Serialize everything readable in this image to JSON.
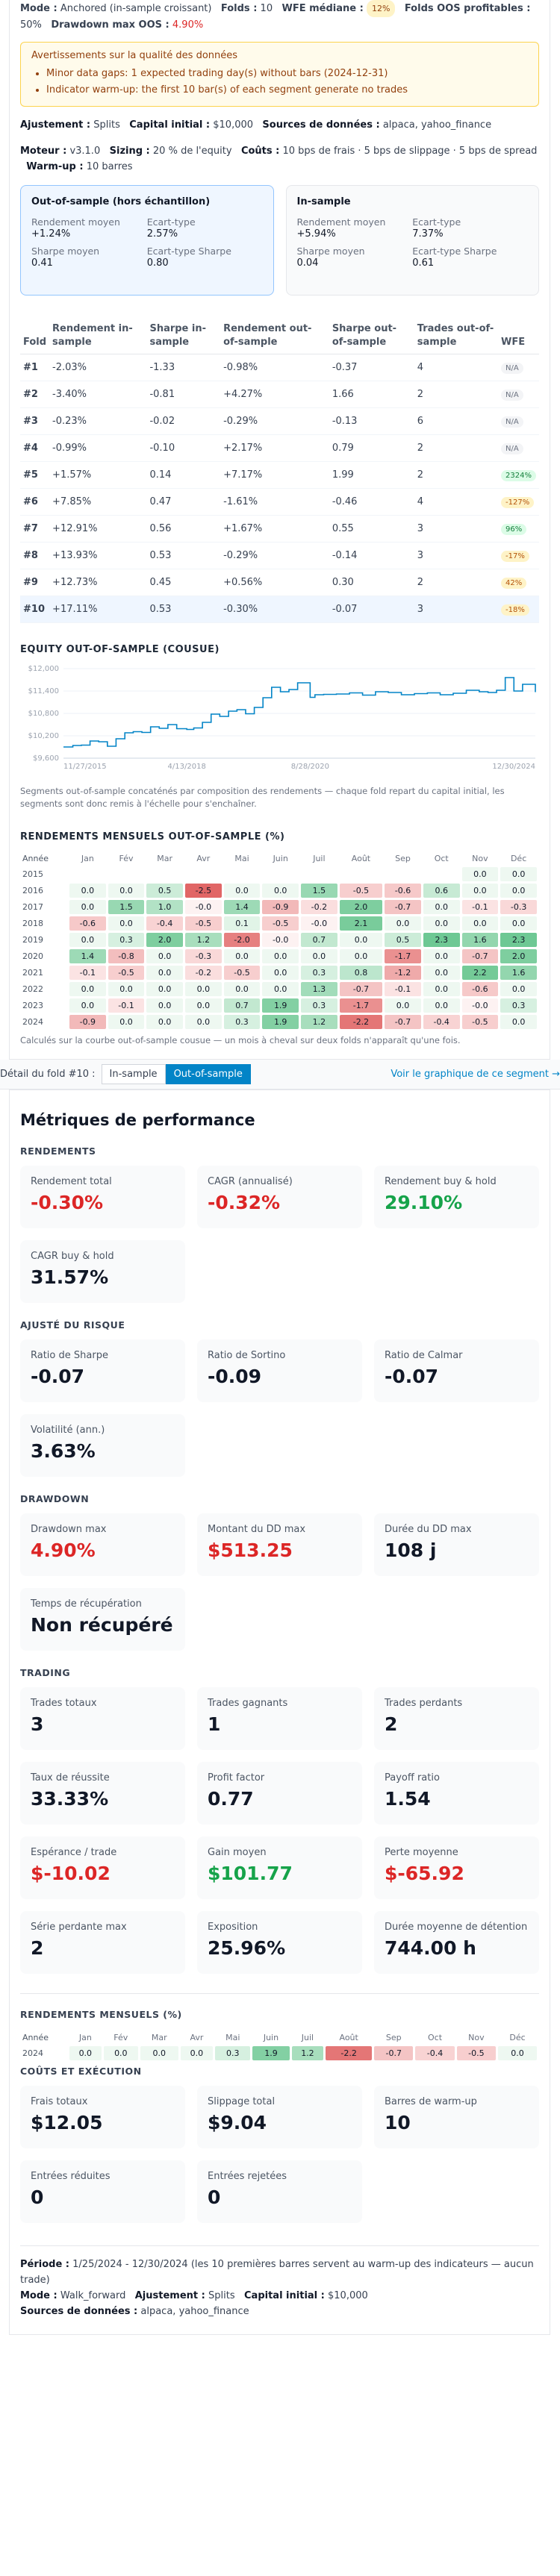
{
  "summary": {
    "mode_label": "Mode :",
    "mode_value": "Anchored (in-sample croissant)",
    "folds_label": "Folds :",
    "folds_value": "10",
    "wfe_label": "WFE médiane :",
    "wfe_value": "12%",
    "folds_oos_label": "Folds OOS profitables :",
    "folds_oos_value": "50%",
    "dd_label": "Drawdown max OOS :",
    "dd_value": "4.90%"
  },
  "warnings": {
    "title": "Avertissements sur la qualité des données",
    "items": [
      "Minor data gaps: 1 expected trading day(s) without bars (2024-12-31)",
      "Indicator warm-up: the first 10 bar(s) of each segment generate no trades"
    ]
  },
  "config": {
    "line1": [
      {
        "k": "Ajustement :",
        "v": "Splits"
      },
      {
        "k": "Capital initial :",
        "v": "$10,000"
      },
      {
        "k": "Sources de données :",
        "v": "alpaca, yahoo_finance"
      }
    ],
    "line2": [
      {
        "k": "Moteur :",
        "v": "v3.1.0"
      },
      {
        "k": "Sizing :",
        "v": "20 % de l'equity"
      },
      {
        "k": "Coûts :",
        "v": "10 bps de frais · 5 bps de slippage · 5 bps de spread"
      },
      {
        "k": "Warm-up :",
        "v": "10 barres"
      }
    ]
  },
  "oos_card": {
    "title": "Out-of-sample (hors échantillon)",
    "avg_label": "Rendement moyen",
    "avg_value": "+1.24%",
    "std_label": "Ecart-type",
    "std_value": "2.57%",
    "sharpe_label": "Sharpe moyen",
    "sharpe_value": "0.41",
    "sharpe_std_label": "Ecart-type Sharpe",
    "sharpe_std_value": "0.80"
  },
  "is_card": {
    "title": "In-sample",
    "avg_label": "Rendement moyen",
    "avg_value": "+5.94%",
    "std_label": "Ecart-type",
    "std_value": "7.37%",
    "sharpe_label": "Sharpe moyen",
    "sharpe_value": "0.04",
    "sharpe_std_label": "Ecart-type Sharpe",
    "sharpe_std_value": "0.61"
  },
  "folds_table": {
    "headers": [
      "Fold",
      "Rendement in-sample",
      "Sharpe in-sample",
      "Rendement out-of-sample",
      "Sharpe out-of-sample",
      "Trades out-of-sample",
      "WFE"
    ],
    "rows": [
      {
        "fold": "#1",
        "is_ret": "-2.03%",
        "is_sharpe": "-1.33",
        "oos_ret": "-0.98%",
        "oos_sharpe": "-0.37",
        "trades": "4",
        "wfe": "N/A",
        "wfe_kind": "na"
      },
      {
        "fold": "#2",
        "is_ret": "-3.40%",
        "is_sharpe": "-0.81",
        "oos_ret": "+4.27%",
        "oos_sharpe": "1.66",
        "trades": "2",
        "wfe": "N/A",
        "wfe_kind": "na"
      },
      {
        "fold": "#3",
        "is_ret": "-0.23%",
        "is_sharpe": "-0.02",
        "oos_ret": "-0.29%",
        "oos_sharpe": "-0.13",
        "trades": "6",
        "wfe": "N/A",
        "wfe_kind": "na"
      },
      {
        "fold": "#4",
        "is_ret": "-0.99%",
        "is_sharpe": "-0.10",
        "oos_ret": "+2.17%",
        "oos_sharpe": "0.79",
        "trades": "2",
        "wfe": "N/A",
        "wfe_kind": "na"
      },
      {
        "fold": "#5",
        "is_ret": "+1.57%",
        "is_sharpe": "0.14",
        "oos_ret": "+7.17%",
        "oos_sharpe": "1.99",
        "trades": "2",
        "wfe": "2324%",
        "wfe_kind": "good"
      },
      {
        "fold": "#6",
        "is_ret": "+7.85%",
        "is_sharpe": "0.47",
        "oos_ret": "-1.61%",
        "oos_sharpe": "-0.46",
        "trades": "4",
        "wfe": "-127%",
        "wfe_kind": "bad"
      },
      {
        "fold": "#7",
        "is_ret": "+12.91%",
        "is_sharpe": "0.56",
        "oos_ret": "+1.67%",
        "oos_sharpe": "0.55",
        "trades": "3",
        "wfe": "96%",
        "wfe_kind": "good"
      },
      {
        "fold": "#8",
        "is_ret": "+13.93%",
        "is_sharpe": "0.53",
        "oos_ret": "-0.29%",
        "oos_sharpe": "-0.14",
        "trades": "3",
        "wfe": "-17%",
        "wfe_kind": "bad"
      },
      {
        "fold": "#9",
        "is_ret": "+12.73%",
        "is_sharpe": "0.45",
        "oos_ret": "+0.56%",
        "oos_sharpe": "0.30",
        "trades": "2",
        "wfe": "42%",
        "wfe_kind": "bad"
      },
      {
        "fold": "#10",
        "is_ret": "+17.11%",
        "is_sharpe": "0.53",
        "oos_ret": "-0.30%",
        "oos_sharpe": "-0.07",
        "trades": "3",
        "wfe": "-18%",
        "wfe_kind": "bad"
      }
    ],
    "selected_index": 9
  },
  "equity": {
    "title": "EQUITY OUT-OF-SAMPLE (COUSUE)",
    "note": "Segments out-of-sample concaténés par composition des rendements — chaque fold repart du capital initial, les segments sont donc remis à l'échelle pour s'enchaîner."
  },
  "chart_data": {
    "type": "line",
    "title": "EQUITY OUT-OF-SAMPLE (COUSUE)",
    "xlabel": "",
    "ylabel": "",
    "y_ticks": [
      "$9,600",
      "$10,200",
      "$10,800",
      "$11,400",
      "$12,000"
    ],
    "x_ticks": [
      "11/27/2015",
      "4/13/2018",
      "8/28/2020",
      "12/30/2024"
    ],
    "ylim": [
      9600,
      12000
    ],
    "x": [
      "2015-11-27",
      "2016-02-01",
      "2016-04-01",
      "2016-06-01",
      "2016-08-01",
      "2016-10-01",
      "2016-12-01",
      "2017-02-01",
      "2017-04-01",
      "2017-06-01",
      "2017-08-01",
      "2017-10-01",
      "2017-12-01",
      "2018-02-01",
      "2018-04-13",
      "2018-06-01",
      "2018-08-01",
      "2018-10-01",
      "2018-12-01",
      "2019-02-01",
      "2019-04-01",
      "2019-06-01",
      "2019-08-01",
      "2019-10-01",
      "2019-12-01",
      "2020-02-01",
      "2020-04-01",
      "2020-06-01",
      "2020-08-28",
      "2020-10-01",
      "2020-12-01",
      "2021-03-01",
      "2021-06-01",
      "2021-09-01",
      "2021-12-01",
      "2022-03-01",
      "2022-06-01",
      "2022-09-01",
      "2022-12-01",
      "2023-03-01",
      "2023-06-01",
      "2023-09-01",
      "2023-12-01",
      "2024-02-01",
      "2024-04-01",
      "2024-06-01",
      "2024-08-01",
      "2024-10-01",
      "2024-12-30"
    ],
    "values": [
      9900,
      9940,
      9950,
      10060,
      10040,
      9920,
      10120,
      10280,
      10310,
      10290,
      10440,
      10400,
      10500,
      10390,
      10370,
      10410,
      10560,
      10780,
      10720,
      10860,
      10900,
      10790,
      10960,
      11220,
      11500,
      11380,
      11440,
      11620,
      11230,
      11300,
      11310,
      11320,
      11350,
      11290,
      11380,
      11360,
      11300,
      11330,
      11350,
      11300,
      11340,
      11420,
      11380,
      11360,
      11420,
      11760,
      11400,
      11580,
      11370
    ]
  },
  "monthly_oos": {
    "title": "RENDEMENTS MENSUELS OUT-OF-SAMPLE (%)",
    "months": [
      "Année",
      "Jan",
      "Fév",
      "Mar",
      "Avr",
      "Mai",
      "Juin",
      "Juil",
      "Août",
      "Sep",
      "Oct",
      "Nov",
      "Déc"
    ],
    "rows": [
      {
        "year": "2015",
        "cells": [
          "",
          "",
          "",
          "",
          "",
          "",
          "",
          "",
          "",
          "",
          "0.0",
          "0.0"
        ]
      },
      {
        "year": "2016",
        "cells": [
          "0.0",
          "0.0",
          "0.5",
          "-2.5",
          "0.0",
          "0.0",
          "1.5",
          "-0.5",
          "-0.6",
          "0.6",
          "0.0",
          "0.0"
        ]
      },
      {
        "year": "2017",
        "cells": [
          "0.0",
          "1.5",
          "1.0",
          "-0.0",
          "1.4",
          "-0.9",
          "-0.2",
          "2.0",
          "-0.7",
          "0.0",
          "-0.1",
          "-0.3"
        ]
      },
      {
        "year": "2018",
        "cells": [
          "-0.6",
          "0.0",
          "-0.4",
          "-0.5",
          "0.1",
          "-0.5",
          "-0.0",
          "2.1",
          "0.0",
          "0.0",
          "0.0",
          "0.0"
        ]
      },
      {
        "year": "2019",
        "cells": [
          "0.0",
          "0.3",
          "2.0",
          "1.2",
          "-2.0",
          "-0.0",
          "0.7",
          "0.0",
          "0.5",
          "2.3",
          "1.6",
          "2.3"
        ]
      },
      {
        "year": "2020",
        "cells": [
          "1.4",
          "-0.8",
          "0.0",
          "-0.3",
          "0.0",
          "0.0",
          "0.0",
          "0.0",
          "-1.7",
          "0.0",
          "-0.7",
          "2.0"
        ]
      },
      {
        "year": "2021",
        "cells": [
          "-0.1",
          "-0.5",
          "0.0",
          "-0.2",
          "-0.5",
          "0.0",
          "0.3",
          "0.8",
          "-1.2",
          "0.0",
          "2.2",
          "1.6"
        ]
      },
      {
        "year": "2022",
        "cells": [
          "0.0",
          "0.0",
          "0.0",
          "0.0",
          "0.0",
          "0.0",
          "1.3",
          "-0.7",
          "-0.1",
          "0.0",
          "-0.6",
          "0.0"
        ]
      },
      {
        "year": "2023",
        "cells": [
          "0.0",
          "-0.1",
          "0.0",
          "0.0",
          "0.7",
          "1.9",
          "0.3",
          "-1.7",
          "0.0",
          "0.0",
          "-0.0",
          "0.3"
        ]
      },
      {
        "year": "2024",
        "cells": [
          "-0.9",
          "0.0",
          "0.0",
          "0.0",
          "0.3",
          "1.9",
          "1.2",
          "-2.2",
          "-0.7",
          "-0.4",
          "-0.5",
          "0.0"
        ]
      }
    ],
    "note": "Calculés sur la courbe out-of-sample cousue — un mois à cheval sur deux folds n'apparaît qu'une fois."
  },
  "detail_bar": {
    "label": "Détail du fold #10 :",
    "tab_is": "In-sample",
    "tab_oos": "Out-of-sample",
    "link": "Voir le graphique de ce segment →"
  },
  "metrics": {
    "title": "Métriques de performance",
    "groups": [
      {
        "title": "RENDEMENTS",
        "cards": [
          {
            "label": "Rendement total",
            "value": "-0.30%",
            "tone": "red"
          },
          {
            "label": "CAGR (annualisé)",
            "value": "-0.32%",
            "tone": "red"
          },
          {
            "label": "Rendement buy & hold",
            "value": "29.10%",
            "tone": "green"
          },
          {
            "label": "CAGR buy & hold",
            "value": "31.57%",
            "tone": ""
          }
        ]
      },
      {
        "title": "AJUSTÉ DU RISQUE",
        "cards": [
          {
            "label": "Ratio de Sharpe",
            "value": "-0.07",
            "tone": ""
          },
          {
            "label": "Ratio de Sortino",
            "value": "-0.09",
            "tone": ""
          },
          {
            "label": "Ratio de Calmar",
            "value": "-0.07",
            "tone": ""
          },
          {
            "label": "Volatilité (ann.)",
            "value": "3.63%",
            "tone": ""
          }
        ]
      },
      {
        "title": "DRAWDOWN",
        "cards": [
          {
            "label": "Drawdown max",
            "value": "4.90%",
            "tone": "red"
          },
          {
            "label": "Montant du DD max",
            "value": "$513.25",
            "tone": "red"
          },
          {
            "label": "Durée du DD max",
            "value": "108 j",
            "tone": ""
          },
          {
            "label": "Temps de récupération",
            "value": "Non récupéré",
            "tone": ""
          }
        ]
      },
      {
        "title": "TRADING",
        "cards": [
          {
            "label": "Trades totaux",
            "value": "3",
            "tone": ""
          },
          {
            "label": "Trades gagnants",
            "value": "1",
            "tone": ""
          },
          {
            "label": "Trades perdants",
            "value": "2",
            "tone": ""
          },
          {
            "label": "Taux de réussite",
            "value": "33.33%",
            "tone": ""
          },
          {
            "label": "Profit factor",
            "value": "0.77",
            "tone": ""
          },
          {
            "label": "Payoff ratio",
            "value": "1.54",
            "tone": ""
          },
          {
            "label": "Espérance / trade",
            "value": "$-10.02",
            "tone": "red"
          },
          {
            "label": "Gain moyen",
            "value": "$101.77",
            "tone": "green"
          },
          {
            "label": "Perte moyenne",
            "value": "$-65.92",
            "tone": "red"
          },
          {
            "label": "Série perdante max",
            "value": "2",
            "tone": ""
          },
          {
            "label": "Exposition",
            "value": "25.96%",
            "tone": ""
          },
          {
            "label": "Durée moyenne de détention",
            "value": "744.00 h",
            "tone": ""
          }
        ]
      }
    ],
    "monthly_title": "RENDEMENTS MENSUELS (%)",
    "monthly_row": {
      "year": "2024",
      "cells": [
        "0.0",
        "0.0",
        "0.0",
        "0.0",
        "0.3",
        "1.9",
        "1.2",
        "-2.2",
        "-0.7",
        "-0.4",
        "-0.5",
        "0.0"
      ]
    },
    "costs_title": "COÛTS ET EXÉCUTION",
    "costs": [
      {
        "label": "Frais totaux",
        "value": "$12.05"
      },
      {
        "label": "Slippage total",
        "value": "$9.04"
      },
      {
        "label": "Barres de warm-up",
        "value": "10"
      },
      {
        "label": "Entrées réduites",
        "value": "0"
      },
      {
        "label": "Entrées rejetées",
        "value": "0"
      }
    ],
    "footer": {
      "period_label": "Période :",
      "period_value": "1/25/2024 - 12/30/2024 (les 10 premières barres servent au warm-up des indicateurs — aucun trade)",
      "line2": [
        {
          "k": "Mode :",
          "v": "Walk_forward"
        },
        {
          "k": "Ajustement :",
          "v": "Splits"
        },
        {
          "k": "Capital initial :",
          "v": "$10,000"
        }
      ],
      "sources_label": "Sources de données :",
      "sources_value": "alpaca, yahoo_finance"
    }
  }
}
